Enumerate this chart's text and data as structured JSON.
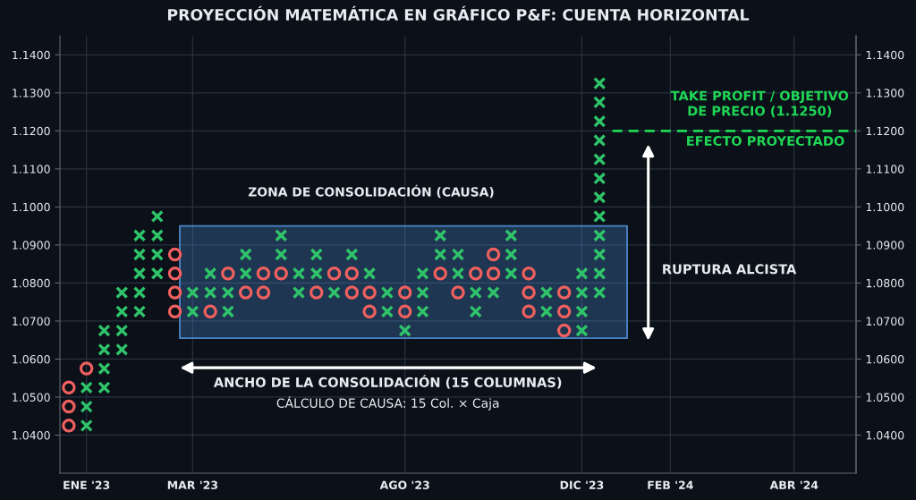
{
  "chart_data": {
    "type": "scatter",
    "title": "PROYECCIÓN MATEMÁTICA EN GRÁFICO P&F: CUENTA HORIZONTAL",
    "categories": [
      null,
      "ENE '23",
      null,
      null,
      null,
      null,
      null,
      "MAR '23",
      null,
      null,
      null,
      null,
      null,
      null,
      null,
      null,
      null,
      null,
      null,
      "AGO '23",
      null,
      null,
      null,
      null,
      null,
      null,
      null,
      null,
      null,
      "DIC '23",
      null,
      null,
      null,
      null,
      "FEB '24",
      null,
      null,
      null,
      null,
      null,
      null,
      "ABR '24",
      null,
      null,
      null
    ],
    "ylim": [
      1.03,
      1.145
    ],
    "yticks": [
      {
        "value": 1.04,
        "label": "1.0400"
      },
      {
        "value": 1.05,
        "label": "1.0500"
      },
      {
        "value": 1.06,
        "label": "1.0600"
      },
      {
        "value": 1.07,
        "label": "1.0700"
      },
      {
        "value": 1.08,
        "label": "1.0800"
      },
      {
        "value": 1.09,
        "label": "1.0900"
      },
      {
        "value": 1.1,
        "label": "1.1000"
      },
      {
        "value": 1.11,
        "label": "1.1100"
      },
      {
        "value": 1.12,
        "label": "1.1200"
      },
      {
        "value": 1.13,
        "label": "1.1300"
      },
      {
        "value": 1.14,
        "label": "1.1400"
      }
    ],
    "y2lim": [
      1.03,
      1.145
    ],
    "y2ticks": [
      {
        "value": 1.04,
        "label": "1.0400"
      },
      {
        "value": 1.05,
        "label": "1.0500"
      },
      {
        "value": 1.06,
        "label": "1.0600"
      },
      {
        "value": 1.07,
        "label": "1.0700"
      },
      {
        "value": 1.08,
        "label": "1.0800"
      },
      {
        "value": 1.09,
        "label": "1.0900"
      },
      {
        "value": 1.1,
        "label": "1.1000"
      },
      {
        "value": 1.11,
        "label": "1.1100"
      },
      {
        "value": 1.12,
        "label": "1.1200"
      },
      {
        "value": 1.13,
        "label": "1.1300"
      },
      {
        "value": 1.14,
        "label": "1.1400"
      }
    ],
    "grid": true,
    "series": [
      {
        "marker": "cross",
        "color": "#2fc46a",
        "values": [
          null,
          1.0425,
          1.0525,
          1.0625,
          1.0725,
          1.0825,
          null,
          1.0725,
          1.0775,
          1.0725,
          1.0825,
          null,
          1.0875,
          1.0775,
          1.0825,
          1.0775,
          1.0875,
          1.0825,
          1.0725,
          1.0675,
          1.0725,
          1.0875,
          1.0825,
          1.0725,
          1.0775,
          1.0825,
          null,
          1.0725,
          null,
          1.0675,
          1.0775,
          null,
          null,
          null,
          null,
          null,
          null,
          null,
          null,
          null,
          null,
          null,
          null,
          null,
          null
        ]
      },
      {
        "marker": "cross",
        "color": "#2fc46a",
        "values": [
          null,
          1.0475,
          1.0575,
          1.0675,
          1.0775,
          1.0875,
          null,
          1.0775,
          1.0825,
          1.0775,
          1.0875,
          null,
          1.0925,
          1.0825,
          1.0875,
          null,
          null,
          null,
          1.0775,
          null,
          1.0775,
          1.0925,
          1.0875,
          1.0775,
          null,
          1.0875,
          null,
          1.0775,
          null,
          1.0725,
          1.0825,
          null,
          null,
          null,
          null,
          null,
          null,
          null,
          null,
          null,
          null,
          null,
          null,
          null,
          null
        ]
      },
      {
        "marker": "cross",
        "color": "#2fc46a",
        "values": [
          null,
          1.0525,
          1.0625,
          1.0725,
          1.0825,
          1.0925,
          null,
          null,
          null,
          null,
          null,
          null,
          null,
          null,
          null,
          null,
          null,
          null,
          null,
          null,
          1.0825,
          null,
          null,
          null,
          null,
          1.0925,
          null,
          null,
          null,
          1.0775,
          1.0875,
          null,
          null,
          null,
          null,
          null,
          null,
          null,
          null,
          null,
          null,
          null,
          null,
          null,
          null
        ]
      },
      {
        "marker": "cross",
        "color": "#2fc46a",
        "values": [
          null,
          null,
          1.0675,
          1.0775,
          1.0875,
          1.0975,
          null,
          null,
          null,
          null,
          null,
          null,
          null,
          null,
          null,
          null,
          null,
          null,
          null,
          null,
          null,
          null,
          null,
          null,
          null,
          null,
          null,
          null,
          null,
          1.0825,
          1.0925,
          null,
          null,
          null,
          null,
          null,
          null,
          null,
          null,
          null,
          null,
          null,
          null,
          null,
          null
        ]
      },
      {
        "marker": "cross",
        "color": "#2fc46a",
        "values": [
          null,
          null,
          null,
          null,
          1.0925,
          null,
          null,
          null,
          null,
          null,
          null,
          null,
          null,
          null,
          null,
          null,
          null,
          null,
          null,
          null,
          null,
          null,
          null,
          null,
          null,
          null,
          null,
          null,
          null,
          null,
          1.0975,
          null,
          null,
          null,
          null,
          null,
          null,
          null,
          null,
          null,
          null,
          null,
          null,
          null,
          null
        ]
      },
      {
        "marker": "cross",
        "color": "#2fc46a",
        "values": [
          null,
          null,
          null,
          null,
          null,
          null,
          null,
          null,
          null,
          null,
          null,
          null,
          null,
          null,
          null,
          null,
          null,
          null,
          null,
          null,
          null,
          null,
          null,
          null,
          null,
          null,
          null,
          null,
          null,
          null,
          1.1025,
          null,
          null,
          null,
          null,
          null,
          null,
          null,
          null,
          null,
          null,
          null,
          null,
          null,
          null
        ]
      },
      {
        "marker": "cross",
        "color": "#2fc46a",
        "values": [
          null,
          null,
          null,
          null,
          null,
          null,
          null,
          null,
          null,
          null,
          null,
          null,
          null,
          null,
          null,
          null,
          null,
          null,
          null,
          null,
          null,
          null,
          null,
          null,
          null,
          null,
          null,
          null,
          null,
          null,
          1.1075,
          null,
          null,
          null,
          null,
          null,
          null,
          null,
          null,
          null,
          null,
          null,
          null,
          null,
          null
        ]
      },
      {
        "marker": "cross",
        "color": "#2fc46a",
        "values": [
          null,
          null,
          null,
          null,
          null,
          null,
          null,
          null,
          null,
          null,
          null,
          null,
          null,
          null,
          null,
          null,
          null,
          null,
          null,
          null,
          null,
          null,
          null,
          null,
          null,
          null,
          null,
          null,
          null,
          null,
          1.1125,
          null,
          null,
          null,
          null,
          null,
          null,
          null,
          null,
          null,
          null,
          null,
          null,
          null,
          null
        ]
      },
      {
        "marker": "cross",
        "color": "#2fc46a",
        "values": [
          null,
          null,
          null,
          null,
          null,
          null,
          null,
          null,
          null,
          null,
          null,
          null,
          null,
          null,
          null,
          null,
          null,
          null,
          null,
          null,
          null,
          null,
          null,
          null,
          null,
          null,
          null,
          null,
          null,
          null,
          1.1175,
          null,
          null,
          null,
          null,
          null,
          null,
          null,
          null,
          null,
          null,
          null,
          null,
          null,
          null
        ]
      },
      {
        "marker": "cross",
        "color": "#2fc46a",
        "values": [
          null,
          null,
          null,
          null,
          null,
          null,
          null,
          null,
          null,
          null,
          null,
          null,
          null,
          null,
          null,
          null,
          null,
          null,
          null,
          null,
          null,
          null,
          null,
          null,
          null,
          null,
          null,
          null,
          null,
          null,
          1.1225,
          null,
          null,
          null,
          null,
          null,
          null,
          null,
          null,
          null,
          null,
          null,
          null,
          null,
          null
        ]
      },
      {
        "marker": "cross",
        "color": "#2fc46a",
        "values": [
          null,
          null,
          null,
          null,
          null,
          null,
          null,
          null,
          null,
          null,
          null,
          null,
          null,
          null,
          null,
          null,
          null,
          null,
          null,
          null,
          null,
          null,
          null,
          null,
          null,
          null,
          null,
          null,
          null,
          null,
          1.1275,
          null,
          null,
          null,
          null,
          null,
          null,
          null,
          null,
          null,
          null,
          null,
          null,
          null,
          null
        ]
      },
      {
        "marker": "cross",
        "color": "#2fc46a",
        "values": [
          null,
          null,
          null,
          null,
          null,
          null,
          null,
          null,
          null,
          null,
          null,
          null,
          null,
          null,
          null,
          null,
          null,
          null,
          null,
          null,
          null,
          null,
          null,
          null,
          null,
          null,
          null,
          null,
          null,
          null,
          1.1325,
          null,
          null,
          null,
          null,
          null,
          null,
          null,
          null,
          null,
          null,
          null,
          null,
          null,
          null
        ]
      },
      {
        "marker": "circle",
        "color": "#f0605e",
        "values": [
          1.0425,
          1.0575,
          null,
          null,
          null,
          null,
          1.0725,
          null,
          1.0725,
          1.0825,
          1.0775,
          1.0775,
          1.0825,
          null,
          1.0775,
          1.0825,
          1.0775,
          1.0725,
          null,
          1.0725,
          null,
          1.0825,
          1.0775,
          1.0825,
          1.0825,
          null,
          1.0725,
          null,
          1.0675,
          null,
          null,
          null,
          null,
          null,
          null,
          null,
          null,
          null,
          null,
          null,
          null,
          null,
          null,
          null,
          null
        ]
      },
      {
        "marker": "circle",
        "color": "#f0605e",
        "values": [
          1.0475,
          null,
          null,
          null,
          null,
          null,
          1.0775,
          null,
          null,
          null,
          null,
          1.0825,
          null,
          null,
          null,
          null,
          1.0825,
          1.0775,
          null,
          1.0775,
          null,
          null,
          null,
          null,
          1.0875,
          null,
          1.0775,
          null,
          1.0725,
          null,
          null,
          null,
          null,
          null,
          null,
          null,
          null,
          null,
          null,
          null,
          null,
          null,
          null,
          null,
          null
        ]
      },
      {
        "marker": "circle",
        "color": "#f0605e",
        "values": [
          1.0525,
          null,
          null,
          null,
          null,
          null,
          1.0825,
          null,
          null,
          null,
          null,
          null,
          null,
          null,
          null,
          null,
          null,
          null,
          null,
          null,
          null,
          null,
          null,
          null,
          null,
          null,
          1.0825,
          null,
          1.0775,
          null,
          null,
          null,
          null,
          null,
          null,
          null,
          null,
          null,
          null,
          null,
          null,
          null,
          null,
          null,
          null
        ]
      },
      {
        "marker": "circle",
        "color": "#f0605e",
        "values": [
          null,
          null,
          null,
          null,
          null,
          null,
          1.0875,
          null,
          null,
          null,
          null,
          null,
          null,
          null,
          null,
          null,
          null,
          null,
          null,
          null,
          null,
          null,
          null,
          null,
          null,
          null,
          null,
          null,
          null,
          null,
          null,
          null,
          null,
          null,
          null,
          null,
          null,
          null,
          null,
          null,
          null,
          null,
          null,
          null,
          null
        ]
      }
    ],
    "bands": [
      {
        "axis": "y",
        "from": 1.0655,
        "to": 1.095,
        "label": "ZONA DE CONSOLIDACIÓN (CAUSA)",
        "color": "#4a86c8"
      }
    ],
    "ref_lines": [
      {
        "axis": "y",
        "value": 1.12,
        "label": "TAKE PROFIT / OBJETIVO\nDE PRECIO (1.1250)",
        "color": "#1fd655",
        "line_style": "dashed"
      }
    ],
    "annotations": [
      "EFECTO PROYECTADO",
      "RUPTURA ALCISTA",
      "ANCHO DE LA CONSOLIDACIÓN (15 COLUMNAS)",
      "CÁLCULO DE CAUSA: 15 Col. × Caja"
    ]
  }
}
